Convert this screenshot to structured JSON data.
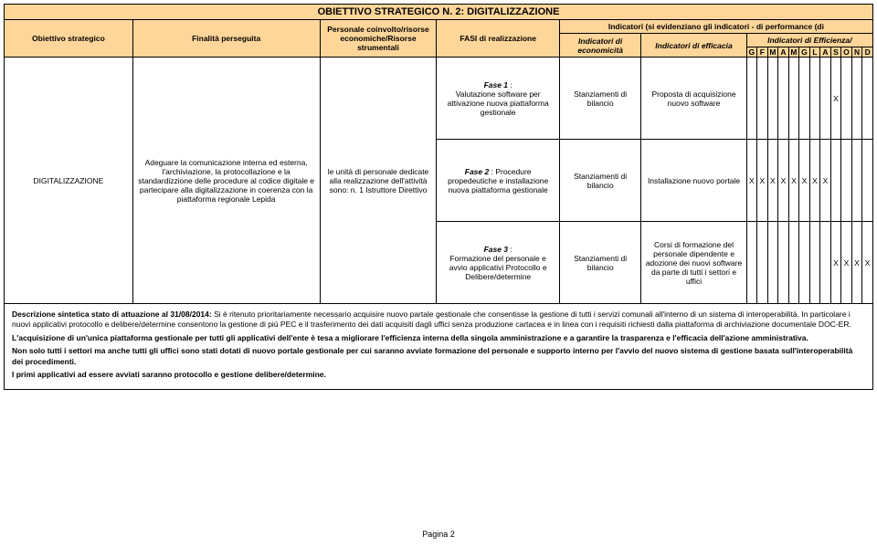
{
  "colors": {
    "header_bg": "#ffd699",
    "header_light": "#ffe6c0",
    "border": "#000000",
    "text": "#000000",
    "page_bg": "#ffffff"
  },
  "title": "OBIETTIVO STRATEGICO N. 2: DIGITALIZZAZIONE",
  "headers": {
    "obiettivo": "Obiettivo strategico",
    "finalita": "Finalità perseguita",
    "personale": "Personale coinvolto/risorse economiche/Risorse strumentali",
    "fasi": "FASI di realizzazione",
    "indicatori_top": "Indicatori (si evidenziano gli indicatori - di performance (di",
    "ind_econ": "Indicatori di economicità",
    "ind_effic": "Indicatori di efficacia",
    "ind_efficienza": "Indicatori di Efficienza/",
    "months": [
      "G",
      "F",
      "M",
      "A",
      "M",
      "G",
      "L",
      "A",
      "S",
      "O",
      "N",
      "D"
    ]
  },
  "rows": [
    {
      "obiettivo": "",
      "finalita": "",
      "personale": "",
      "fasi": "Fase 1 :\nValutazione software per attivazione nuova piattaforma gestionale",
      "fasi_bold": "Fase 1",
      "econ": "Stanziamenti di bilancio",
      "effic": "Proposta di acquisizione nuovo software",
      "marks": [
        "",
        "",
        "",
        "",
        "",
        "",
        "",
        "",
        "X",
        "",
        "",
        ""
      ]
    },
    {
      "obiettivo": "DIGITALIZZAZIONE",
      "finalita": "Adeguare la comunicazione interna ed esterna, l'archiviazione, la protocollazione e la standardizzione delle procedure al codice digitale e partecipare alla digitalizzazione in coerenza con la piattaforma regionale Lepida",
      "personale": "le unità di personale dedicate alla realizzazione dell'attività sono:\nn. 1 Istruttore Direttivo",
      "fasi": "Fase 2 : Procedure propedeutiche e installazione nuova piattaforma gestionale",
      "fasi_bold": "Fase 2",
      "econ": "Stanziamenti di bilancio",
      "effic": "Installazione nuovo portale",
      "marks": [
        "X",
        "X",
        "X",
        "X",
        "X",
        "X",
        "X",
        "X",
        "",
        "",
        "",
        ""
      ]
    },
    {
      "obiettivo": "",
      "finalita": "",
      "personale": "",
      "fasi": "Fase 3 :\nFormazione del personale e avvio applicativi Protocollo e Delibere/determine",
      "fasi_bold": "Fase 3",
      "econ": "Stanziamenti di bilancio",
      "effic": "Corsi di formazione del personale dipendente e adozione dei nuovi software da parte di tutti i settori e uffici",
      "marks": [
        "",
        "",
        "",
        "",
        "",
        "",
        "",
        "",
        "X",
        "X",
        "X",
        "X"
      ]
    }
  ],
  "description": {
    "p1_bold": "Descrizione sintetica stato di attuazione al 31/08/2014:",
    "p1": " Si è ritenuto prioritariamente necessario acquisire nuovo partale gestionale che consentisse la gestione di tutti i servizi comunali all'interno di un sistema di interoperabilità. In particolare i nuovi applicativi protocollo e delibere/determine consentono la gestione di più PEC e il trasferimento dei dati acquisiti dagli uffici senza produzione cartacea e in linea con i requisiti richiesti dalla piattaforma di archiviazione documentale DOC-ER.",
    "p2": "L'acquisizione di un'unica piattaforma gestionale per tutti gli applicativi dell'ente è tesa a migliorare l'efficienza interna della singola amministrazione e a garantire la trasparenza e l'efficacia dell'azione amministrativa.",
    "p3": "Non solo tutti i settori ma anche tutti gli uffici sono stati dotati di nuovo portale gestionale per cui saranno avviate formazione del personale e supporto interno per l'avvio del nuovo sistema di gestione basata sull'interoperabilità dei procedimenti.",
    "p4": "I primi applicativi ad essere avviati saranno protocollo e gestione delibere/determine."
  },
  "page_number": "Pagina 2"
}
